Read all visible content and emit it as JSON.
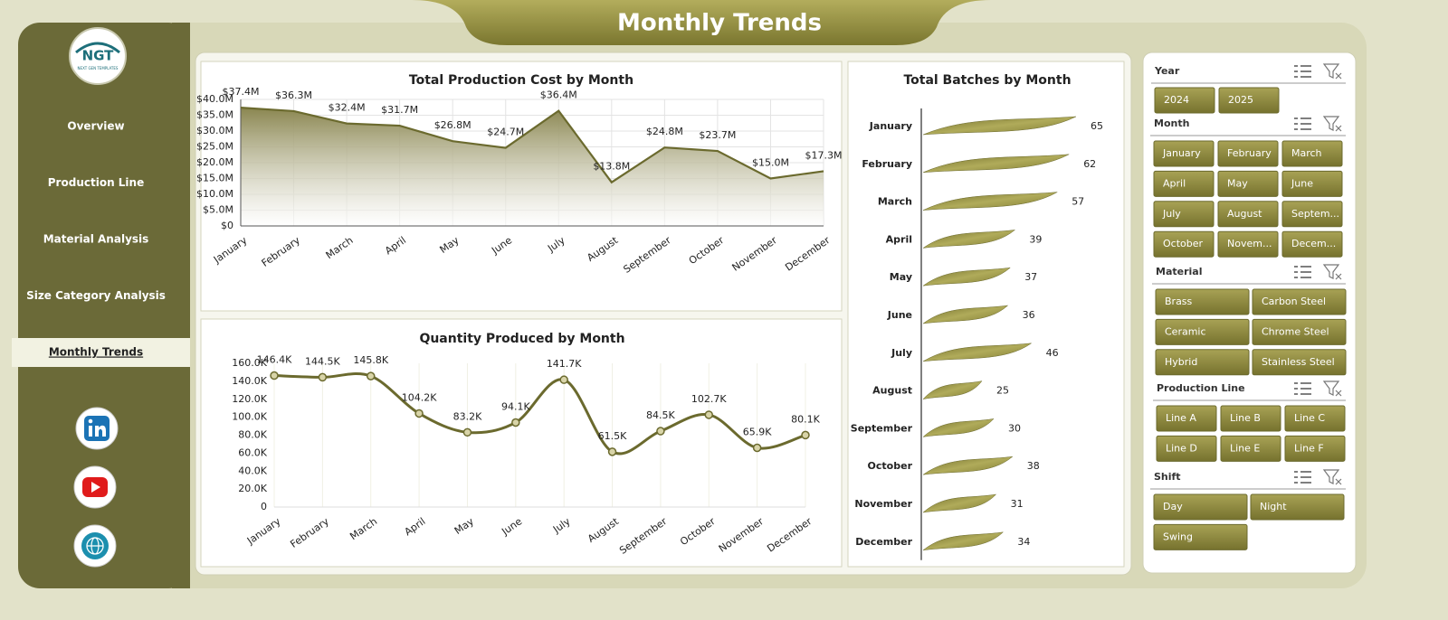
{
  "header": {
    "title": "Monthly Trends",
    "logo": "NGT",
    "logo_tagline": "NEXT GEN TEMPLATES"
  },
  "sidebar": {
    "items": [
      "Overview",
      "Production Line",
      "Material Analysis",
      "Size Category Analysis",
      "Monthly Trends"
    ],
    "active": 4
  },
  "chart_data": [
    {
      "type": "area",
      "title": "Total Production Cost by Month",
      "categories": [
        "January",
        "February",
        "March",
        "April",
        "May",
        "June",
        "July",
        "August",
        "September",
        "October",
        "November",
        "December"
      ],
      "values": [
        37.4,
        36.3,
        32.4,
        31.7,
        26.8,
        24.7,
        36.4,
        13.8,
        24.8,
        23.7,
        15.0,
        17.3
      ],
      "value_labels": [
        "$37.4M",
        "$36.3M",
        "$32.4M",
        "$31.7M",
        "$26.8M",
        "$24.7M",
        "$36.4M",
        "$13.8M",
        "$24.8M",
        "$23.7M",
        "$15.0M",
        "$17.3M"
      ],
      "color": "#6b6a2e",
      "ylim": [
        0,
        40
      ],
      "yticks": [
        {
          "value": 0,
          "label": "$0"
        },
        {
          "value": 5,
          "label": "$5.0M"
        },
        {
          "value": 10,
          "label": "$10.0M"
        },
        {
          "value": 15,
          "label": "$15.0M"
        },
        {
          "value": 20,
          "label": "$20.0M"
        },
        {
          "value": 25,
          "label": "$25.0M"
        },
        {
          "value": 30,
          "label": "$30.0M"
        },
        {
          "value": 35,
          "label": "$35.0M"
        },
        {
          "value": 40,
          "label": "$40.0M"
        }
      ],
      "grid": true
    },
    {
      "type": "line",
      "title": "Quantity Produced by Month",
      "categories": [
        "January",
        "February",
        "March",
        "April",
        "May",
        "June",
        "July",
        "August",
        "September",
        "October",
        "November",
        "December"
      ],
      "values": [
        146400,
        144500,
        145800,
        104200,
        83200,
        94100,
        141700,
        61500,
        84500,
        102700,
        65900,
        80100
      ],
      "value_labels": [
        "146.4K",
        "144.5K",
        "145.8K",
        "104.2K",
        "83.2K",
        "94.1K",
        "141.7K",
        "61.5K",
        "84.5K",
        "102.7K",
        "65.9K",
        "80.1K"
      ],
      "color": "#6b6a2e",
      "ylim": [
        0,
        160000
      ],
      "yticks": [
        0,
        {
          "value": 20000,
          "label": "20.0K"
        },
        {
          "value": 40000,
          "label": "40.0K"
        },
        {
          "value": 60000,
          "label": "60.0K"
        },
        {
          "value": 80000,
          "label": "80.0K"
        },
        {
          "value": 100000,
          "label": "100.0K"
        },
        {
          "value": 120000,
          "label": "120.0K"
        },
        {
          "value": 140000,
          "label": "140.0K"
        },
        {
          "value": 160000,
          "label": "160.0K"
        }
      ],
      "grid": "x"
    },
    {
      "type": "barh",
      "title": "Total Batches by Month",
      "categories": [
        "January",
        "February",
        "March",
        "April",
        "May",
        "June",
        "July",
        "August",
        "September",
        "October",
        "November",
        "December"
      ],
      "values": [
        65,
        62,
        57,
        39,
        37,
        36,
        46,
        25,
        30,
        38,
        31,
        34
      ],
      "color": "#8f8a3a"
    }
  ],
  "slicers": [
    {
      "title": "Year",
      "items": [
        "2024",
        "2025"
      ]
    },
    {
      "title": "Month",
      "items": [
        "January",
        "February",
        "March",
        "April",
        "May",
        "June",
        "July",
        "August",
        "Septem...",
        "October",
        "Novem...",
        "Decem..."
      ]
    },
    {
      "title": "Material",
      "items": [
        "Brass",
        "Carbon Steel",
        "Ceramic",
        "Chrome Steel",
        "Hybrid",
        "Stainless Steel"
      ]
    },
    {
      "title": "Production Line",
      "items": [
        "Line A",
        "Line B",
        "Line C",
        "Line D",
        "Line E",
        "Line F"
      ]
    },
    {
      "title": "Shift",
      "items": [
        "Day",
        "Night",
        "Swing"
      ]
    }
  ]
}
